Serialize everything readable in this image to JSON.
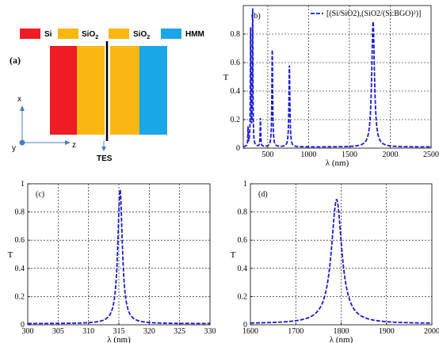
{
  "schematic": {
    "panel_label": "(a)",
    "legend": [
      {
        "label": "Si",
        "color": "#ee1c24"
      },
      {
        "label": "SiO",
        "sub": "2",
        "color": "#fbb711"
      },
      {
        "label": "SiO",
        "sub": "2",
        "color": "#fbb711"
      },
      {
        "label": "HMM",
        "color": "#1aa6e8"
      }
    ],
    "layers": [
      {
        "name": "Si",
        "color": "#ee1c24"
      },
      {
        "name": "SiO2",
        "color": "#fbb711"
      },
      {
        "name": "SiO2",
        "color": "#fbb711"
      },
      {
        "name": "HMM",
        "color": "#1aa6e8"
      }
    ],
    "axis_x": "x",
    "axis_y": "y",
    "axis_z": "z",
    "tes_label": "TES"
  },
  "chart_data": [
    {
      "id": "b",
      "type": "line",
      "panel_label": "(b)",
      "xlabel": "λ (nm)",
      "ylabel": "T",
      "xlim": [
        200,
        2500
      ],
      "ylim": [
        0,
        1
      ],
      "xticks": [
        500,
        1000,
        1500,
        2000,
        2500
      ],
      "yticks": [
        0,
        0.2,
        0.4,
        0.6,
        0.8
      ],
      "grid": true,
      "legend": "top-right",
      "series": [
        {
          "name": "[(Si/SiO2),(SiO2/(Si:BGO)²)]",
          "color": "#1a1ad6",
          "style": "dashed",
          "peaks": [
            [
              258,
              0.13,
              3
            ],
            [
              290,
              0.82,
              4
            ],
            [
              315,
              0.95,
              4
            ],
            [
              410,
              0.2,
              4
            ],
            [
              555,
              0.68,
              6
            ],
            [
              765,
              0.57,
              7
            ],
            [
              1790,
              0.88,
              20
            ]
          ]
        }
      ]
    },
    {
      "id": "c",
      "type": "line",
      "panel_label": "(c)",
      "xlabel": "λ (nm)",
      "ylabel": "T",
      "xlim": [
        300,
        330
      ],
      "ylim": [
        0,
        1
      ],
      "xticks": [
        300,
        305,
        310,
        315,
        320,
        325,
        330
      ],
      "yticks": [
        0,
        0.2,
        0.4,
        0.6,
        0.8,
        1
      ],
      "grid": true,
      "series": [
        {
          "color": "#1a1ad6",
          "style": "dashed",
          "peaks": [
            [
              315.2,
              0.95,
              0.45
            ]
          ]
        }
      ]
    },
    {
      "id": "d",
      "type": "line",
      "panel_label": "(d)",
      "xlabel": "λ (nm)",
      "ylabel": "T",
      "xlim": [
        1600,
        2000
      ],
      "ylim": [
        0,
        1
      ],
      "xticks": [
        1600,
        1700,
        1800,
        1900,
        2000
      ],
      "yticks": [
        0,
        0.2,
        0.4,
        0.6,
        0.8,
        1
      ],
      "grid": true,
      "series": [
        {
          "color": "#1a1ad6",
          "style": "dashed",
          "peaks": [
            [
              1790,
              0.88,
              14
            ]
          ]
        }
      ]
    }
  ]
}
